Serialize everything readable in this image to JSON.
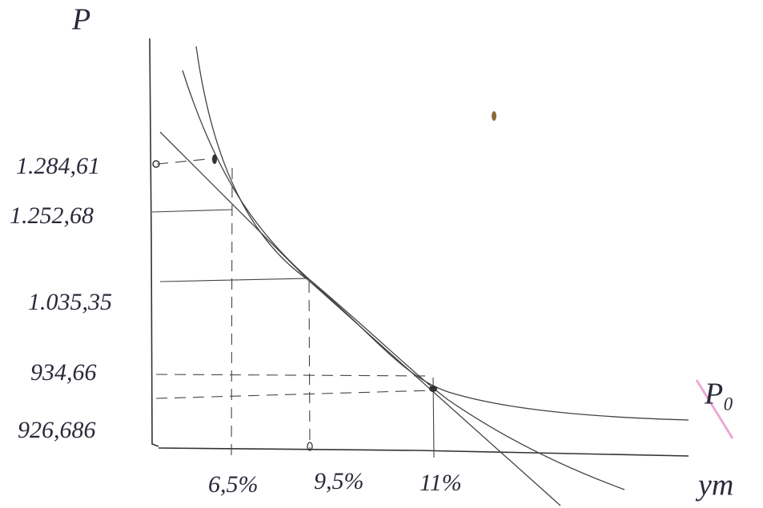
{
  "axes": {
    "y_label": "P",
    "x_label": "ym"
  },
  "curve_label": "P₀",
  "y_labels": [
    "1.284,61",
    "1.252,68",
    "1.035,35",
    "934,66",
    "926,686"
  ],
  "x_labels": [
    "6,5%",
    "9,5%",
    "11%"
  ]
}
